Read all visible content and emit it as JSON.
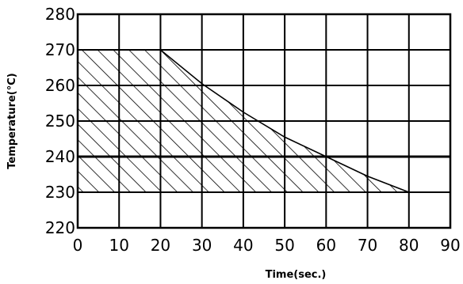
{
  "chart_data": {
    "type": "area",
    "title": "",
    "xlabel": "Time(sec.)",
    "ylabel": "Temperature(°C)",
    "xlim": [
      0,
      90
    ],
    "ylim": [
      220,
      280
    ],
    "x_ticks": [
      0,
      10,
      20,
      30,
      40,
      50,
      60,
      70,
      80,
      90
    ],
    "y_ticks": [
      220,
      230,
      240,
      250,
      260,
      270,
      280
    ],
    "x_tick_labels": [
      "0",
      "10",
      "20",
      "30",
      "40",
      "50",
      "60",
      "70",
      "80",
      "90"
    ],
    "y_tick_labels": [
      "220",
      "230",
      "240",
      "250",
      "260",
      "270",
      "280"
    ],
    "grid": true,
    "fill_pattern": "diagonal-hatch",
    "baseline": 230,
    "series": [
      {
        "x": [
          0,
          10,
          20,
          30,
          40,
          50,
          60,
          70,
          80
        ],
        "y": [
          270,
          270,
          270,
          260.5,
          252.5,
          245.5,
          240,
          234.5,
          230
        ]
      }
    ],
    "reference_lines": [
      240
    ]
  }
}
